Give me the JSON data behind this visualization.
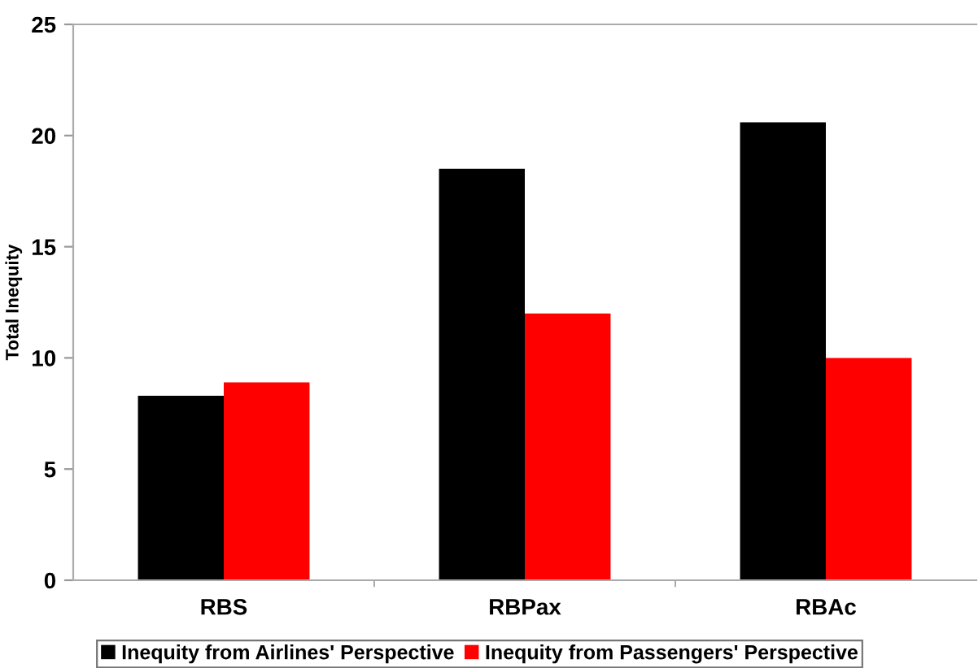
{
  "chart_data": {
    "type": "bar",
    "ylabel": "Total Inequity",
    "categories": [
      "RBS",
      "RBPax",
      "RBAc"
    ],
    "series": [
      {
        "name": "Inequity from Airlines' Perspective",
        "color": "#000000",
        "values": [
          8.3,
          18.5,
          20.6
        ]
      },
      {
        "name": "Inequity from Passengers' Perspective",
        "color": "#ff0000",
        "values": [
          8.9,
          12.0,
          10.0
        ]
      }
    ],
    "ylim": [
      0,
      25
    ],
    "yticks": [
      0,
      5,
      10,
      15,
      20,
      25
    ],
    "grid": false,
    "legend": "bottom"
  }
}
